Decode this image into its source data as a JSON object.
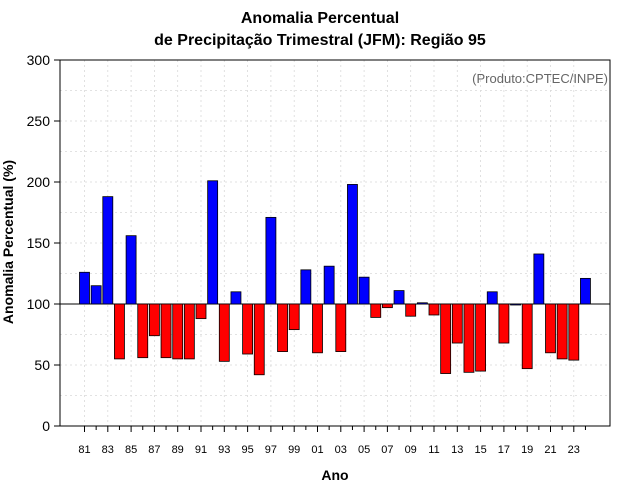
{
  "chart_data": {
    "type": "bar",
    "title_line1": "Anomalia Percentual",
    "title_line2": "de Precipitação Trimestral (JFM): Região 95",
    "credit": "(Produto:CPTEC/INPE)",
    "xlabel": "Ano",
    "ylabel": "Anomalia Percentual (%)",
    "ylim": [
      0,
      300
    ],
    "yticks": [
      0,
      50,
      100,
      150,
      200,
      250,
      300
    ],
    "baseline": 100,
    "grid": true,
    "colors": {
      "above": "#0000ff",
      "below": "#ff0000",
      "border": "#000000"
    },
    "categories": [
      "81",
      "82",
      "83",
      "84",
      "85",
      "86",
      "87",
      "88",
      "89",
      "90",
      "91",
      "92",
      "93",
      "94",
      "95",
      "96",
      "97",
      "98",
      "99",
      "00",
      "01",
      "02",
      "03",
      "04",
      "05",
      "06",
      "07",
      "08",
      "09",
      "10",
      "11",
      "12",
      "13",
      "14",
      "15",
      "16",
      "17",
      "18",
      "19",
      "20",
      "21",
      "22",
      "23",
      "24"
    ],
    "xtick_labels": [
      "81",
      "83",
      "85",
      "87",
      "89",
      "91",
      "93",
      "95",
      "97",
      "99",
      "01",
      "03",
      "05",
      "07",
      "09",
      "11",
      "13",
      "15",
      "17",
      "19",
      "21",
      "23"
    ],
    "values": [
      126,
      115,
      188,
      55,
      156,
      56,
      74,
      56,
      55,
      55,
      88,
      201,
      53,
      110,
      59,
      42,
      171,
      61,
      79,
      128,
      60,
      131,
      61,
      198,
      122,
      89,
      97,
      111,
      90,
      101,
      91,
      43,
      68,
      44,
      45,
      110,
      68,
      100,
      47,
      141,
      60,
      55,
      54,
      121
    ]
  }
}
